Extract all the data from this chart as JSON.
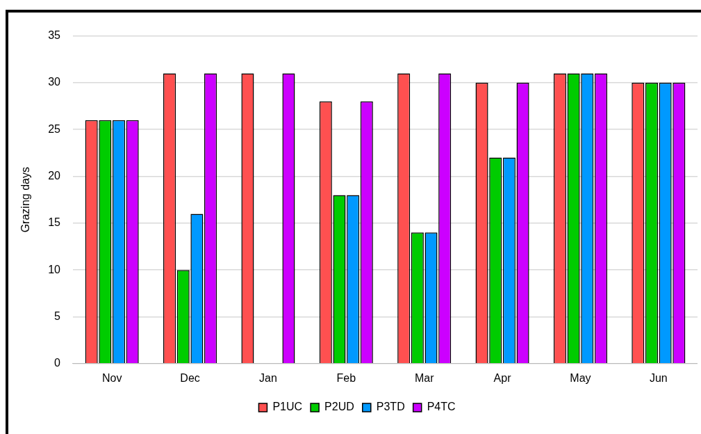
{
  "chart_data": {
    "type": "bar",
    "ylabel": "Grazing days",
    "categories": [
      "Nov",
      "Dec",
      "Jan",
      "Feb",
      "Mar",
      "Apr",
      "May",
      "Jun"
    ],
    "series": [
      {
        "name": "P1UC",
        "color": "#ff5050",
        "values": [
          26,
          31,
          31,
          28,
          31,
          30,
          31,
          30
        ]
      },
      {
        "name": "P2UD",
        "color": "#00cc00",
        "values": [
          26,
          10,
          0,
          18,
          14,
          22,
          31,
          30
        ]
      },
      {
        "name": "P3TD",
        "color": "#0099ff",
        "values": [
          26,
          16,
          0,
          18,
          14,
          22,
          31,
          30
        ]
      },
      {
        "name": "P4TC",
        "color": "#cc00ff",
        "values": [
          26,
          31,
          31,
          28,
          31,
          30,
          31,
          30
        ]
      }
    ],
    "ylim": [
      0,
      35
    ],
    "yticks": [
      0,
      5,
      10,
      15,
      20,
      25,
      30,
      35
    ],
    "grid": "y",
    "legend": "bottom"
  }
}
